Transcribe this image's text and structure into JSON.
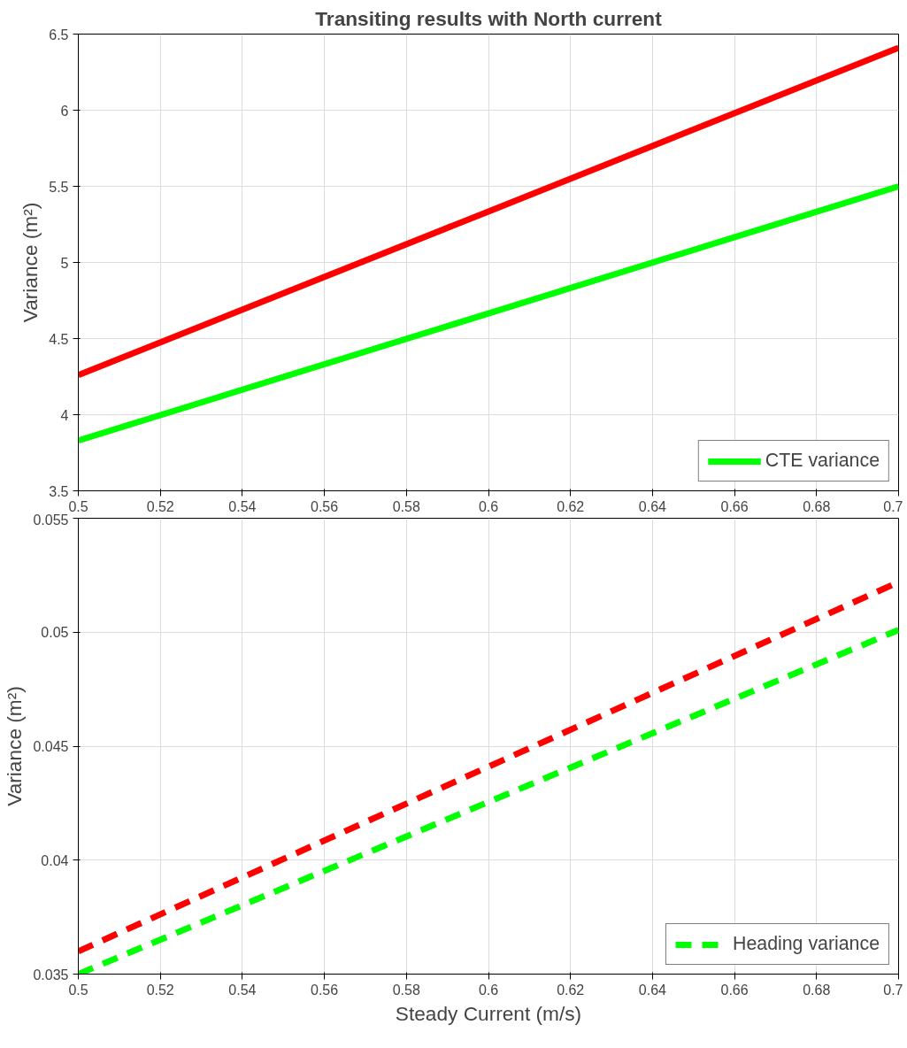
{
  "chart_data": [
    {
      "type": "line",
      "title": "Transiting results with North current",
      "ylabel": "Variance (m²)",
      "x": [
        0.5,
        0.6,
        0.7
      ],
      "xlim": [
        0.5,
        0.7
      ],
      "xticks": [
        0.5,
        0.52,
        0.54,
        0.56,
        0.58,
        0.6,
        0.62,
        0.64,
        0.66,
        0.68,
        0.7
      ],
      "ylim": [
        3.5,
        6.5
      ],
      "yticks": [
        3.5,
        4,
        4.5,
        5,
        5.5,
        6,
        6.5
      ],
      "grid": true,
      "legend": "bottom right",
      "line_style": "solid",
      "series": [
        {
          "name": "CTE variance",
          "color": "#00ff00",
          "values": [
            3.83,
            4.665,
            5.5
          ]
        },
        {
          "color": "#ff0000",
          "values": [
            4.26,
            5.335,
            6.41
          ]
        }
      ]
    },
    {
      "type": "line",
      "xlabel": "Steady Current (m/s)",
      "ylabel": "Variance (m²)",
      "x": [
        0.5,
        0.6,
        0.7
      ],
      "xlim": [
        0.5,
        0.7
      ],
      "xticks": [
        0.5,
        0.52,
        0.54,
        0.56,
        0.58,
        0.6,
        0.62,
        0.64,
        0.66,
        0.68,
        0.7
      ],
      "ylim": [
        0.035,
        0.055
      ],
      "yticks": [
        0.035,
        0.04,
        0.045,
        0.05,
        0.055
      ],
      "grid": true,
      "legend": "bottom right",
      "line_style": "dashed",
      "series": [
        {
          "name": "Heading variance",
          "color": "#00ff00",
          "values": [
            0.035,
            0.04255,
            0.0501
          ]
        },
        {
          "color": "#ff0000",
          "values": [
            0.036,
            0.0441,
            0.0522
          ]
        }
      ]
    }
  ]
}
